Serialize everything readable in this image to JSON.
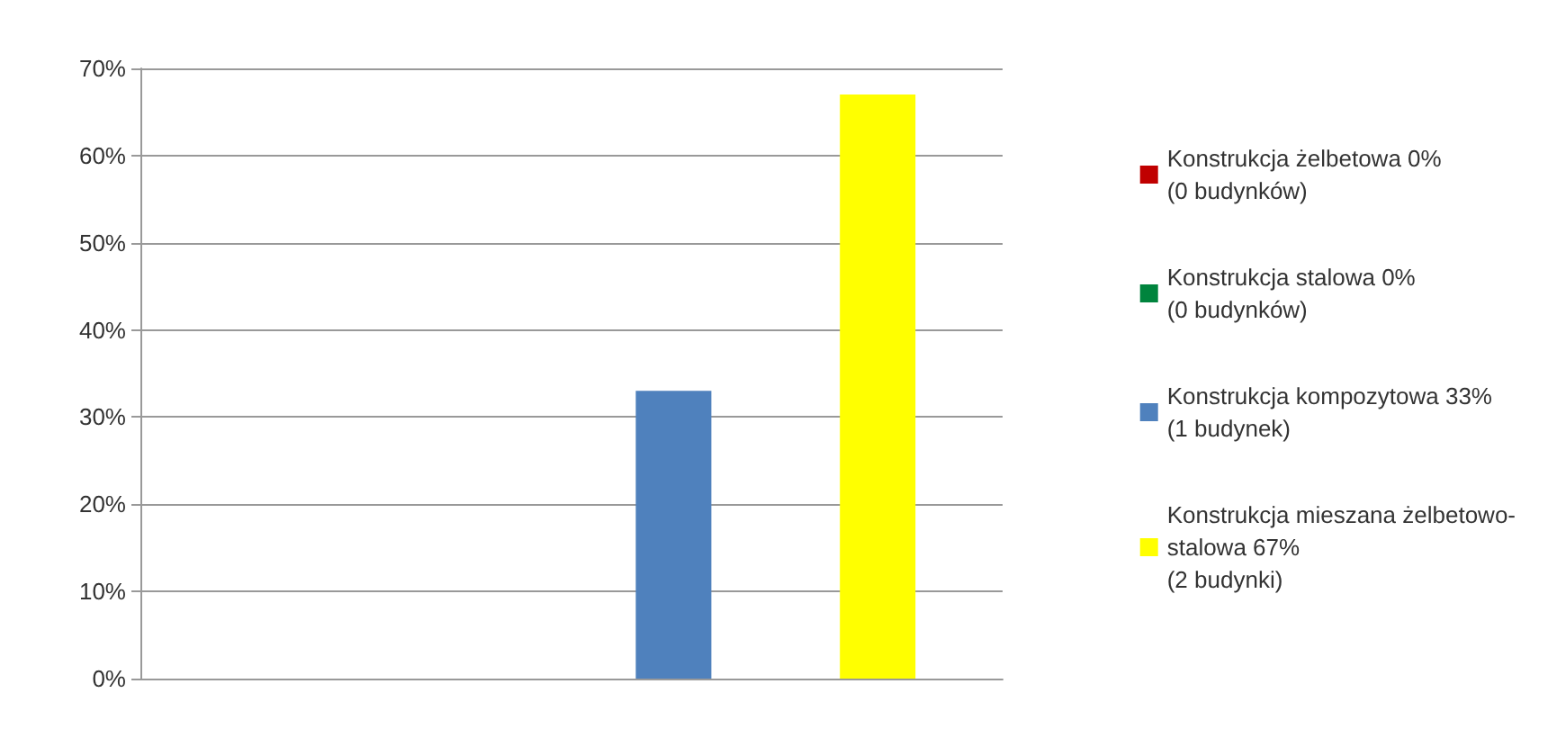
{
  "chart_data": {
    "type": "bar",
    "categories": [
      null
    ],
    "series": [
      {
        "name": "Konstrukcja żelbetowa 0%\n(0 budynków)",
        "color": "#c00000",
        "values": [
          0
        ]
      },
      {
        "name": "Konstrukcja stalowa 0%\n(0 budynków)",
        "color": "#00843d",
        "values": [
          0
        ]
      },
      {
        "name": "Konstrukcja kompozytowa 33%\n(1 budynek)",
        "color": "#4f81bd",
        "values": [
          33
        ]
      },
      {
        "name": "Konstrukcja mieszana żelbetowo-\nstalowa 67%\n(2 budynki)",
        "color": "#ffff00",
        "values": [
          67
        ]
      }
    ],
    "ylim": [
      0,
      70
    ],
    "yticks": [
      {
        "value": 0,
        "label": "0%"
      },
      {
        "value": 10,
        "label": "10%"
      },
      {
        "value": 20,
        "label": "20%"
      },
      {
        "value": 30,
        "label": "30%"
      },
      {
        "value": 40,
        "label": "40%"
      },
      {
        "value": 50,
        "label": "50%"
      },
      {
        "value": 60,
        "label": "60%"
      },
      {
        "value": 70,
        "label": "70%"
      }
    ],
    "grid": "y",
    "legend": "right"
  }
}
